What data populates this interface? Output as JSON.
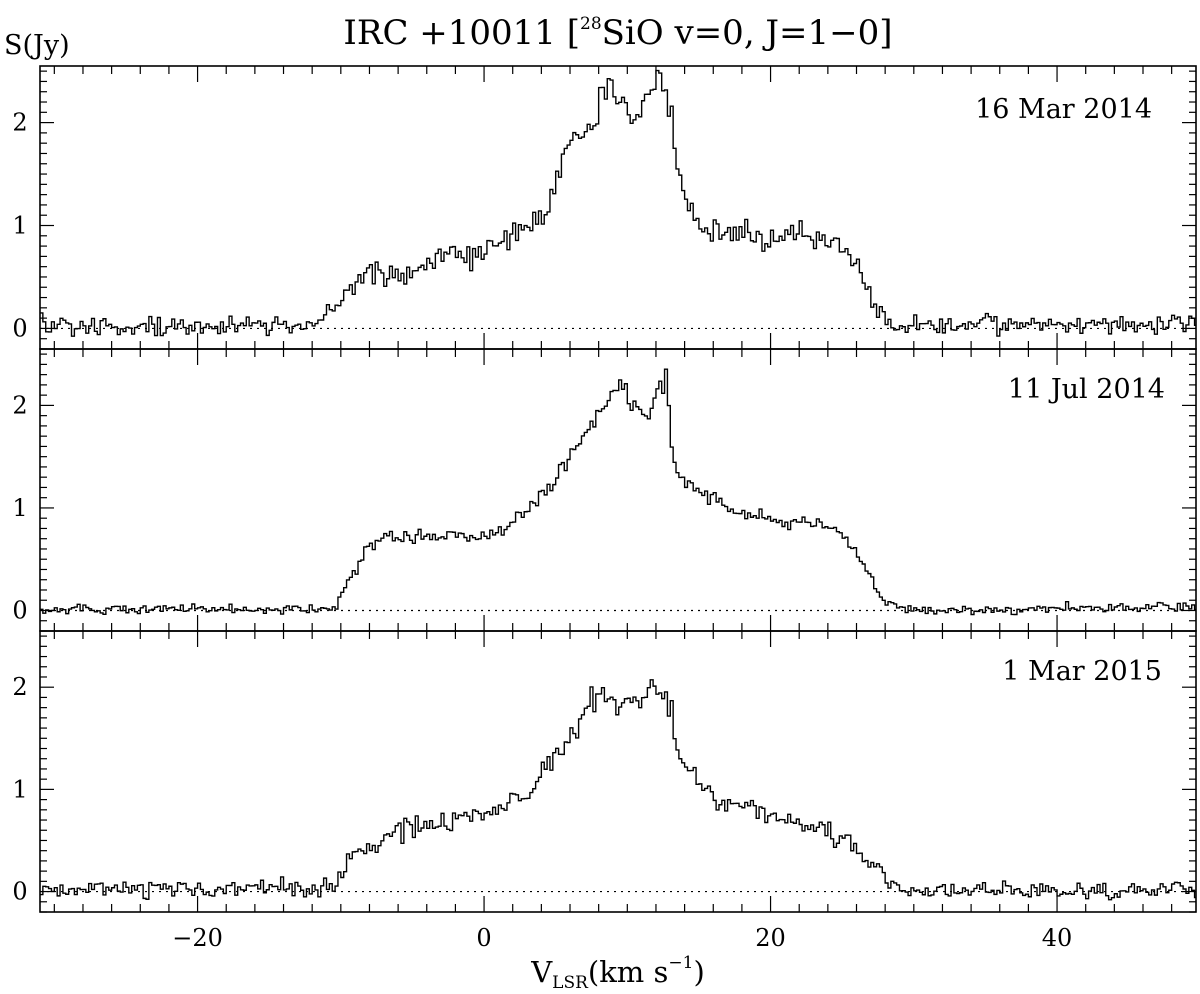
{
  "chart_data": {
    "type": "line",
    "title_main": "IRC +10011 [",
    "title_sup": "28",
    "title_rest": "SiO v=0, J=1−0]",
    "ylabel": "S(Jy)",
    "xlabel_main": "V",
    "xlabel_sub": "LSR",
    "xlabel_rest": "(km s",
    "xlabel_sup": "−1",
    "xlabel_end": ")",
    "xlim": [
      -31,
      49.7
    ],
    "ylim": [
      -0.2,
      2.55
    ],
    "x_ticks": [
      -20,
      0,
      20,
      40
    ],
    "x_tick_labels": [
      "−20",
      "0",
      "20",
      "40"
    ],
    "y_ticks": [
      0,
      1,
      2
    ],
    "y_tick_labels": [
      "0",
      "1",
      "2"
    ],
    "baseline": 0,
    "grid": false,
    "panels": [
      {
        "date": "16 Mar 2014",
        "profile": [
          [
            -31,
            0.03
          ],
          [
            -12,
            0.02
          ],
          [
            -10,
            0.25
          ],
          [
            -8,
            0.6
          ],
          [
            -5,
            0.55
          ],
          [
            -2,
            0.72
          ],
          [
            0,
            0.72
          ],
          [
            2,
            0.9
          ],
          [
            4,
            1.1
          ],
          [
            5.5,
            1.6
          ],
          [
            6,
            1.85
          ],
          [
            7.5,
            1.95
          ],
          [
            8.5,
            2.3
          ],
          [
            9.3,
            2.28
          ],
          [
            10,
            2.05
          ],
          [
            11,
            2.05
          ],
          [
            12,
            2.5
          ],
          [
            13,
            2.15
          ],
          [
            13.7,
            1.5
          ],
          [
            14.5,
            1.05
          ],
          [
            16,
            0.95
          ],
          [
            18,
            0.95
          ],
          [
            20,
            0.88
          ],
          [
            22,
            0.92
          ],
          [
            24,
            0.88
          ],
          [
            25.5,
            0.72
          ],
          [
            26.5,
            0.45
          ],
          [
            27.5,
            0.18
          ],
          [
            28.5,
            0.02
          ],
          [
            49.7,
            0.05
          ]
        ],
        "noise": 0.08
      },
      {
        "date": "11 Jul 2014",
        "profile": [
          [
            -31,
            0.01
          ],
          [
            -10.5,
            0.01
          ],
          [
            -9.5,
            0.3
          ],
          [
            -8,
            0.65
          ],
          [
            -6,
            0.72
          ],
          [
            -3,
            0.72
          ],
          [
            0,
            0.72
          ],
          [
            3,
            0.95
          ],
          [
            5,
            1.3
          ],
          [
            6.5,
            1.6
          ],
          [
            8,
            1.95
          ],
          [
            9.5,
            2.22
          ],
          [
            10.3,
            2.0
          ],
          [
            11.5,
            1.95
          ],
          [
            12.7,
            2.3
          ],
          [
            13.3,
            1.4
          ],
          [
            15,
            1.15
          ],
          [
            17,
            1.0
          ],
          [
            20,
            0.88
          ],
          [
            23,
            0.85
          ],
          [
            25,
            0.75
          ],
          [
            26.5,
            0.45
          ],
          [
            28,
            0.1
          ],
          [
            29,
            0.0
          ],
          [
            49.7,
            0.03
          ]
        ],
        "noise": 0.04
      },
      {
        "date": "1 Mar 2015",
        "profile": [
          [
            -31,
            0.02
          ],
          [
            -10.5,
            0.04
          ],
          [
            -9,
            0.35
          ],
          [
            -6,
            0.6
          ],
          [
            -3,
            0.68
          ],
          [
            0,
            0.78
          ],
          [
            3,
            0.95
          ],
          [
            5,
            1.35
          ],
          [
            6.5,
            1.6
          ],
          [
            7.5,
            1.85
          ],
          [
            9,
            1.9
          ],
          [
            10.3,
            1.75
          ],
          [
            11.5,
            1.98
          ],
          [
            12.7,
            1.95
          ],
          [
            13.5,
            1.45
          ],
          [
            15,
            1.05
          ],
          [
            17,
            0.85
          ],
          [
            19.5,
            0.8
          ],
          [
            22,
            0.65
          ],
          [
            24,
            0.6
          ],
          [
            26,
            0.42
          ],
          [
            27.5,
            0.18
          ],
          [
            29,
            0.05
          ],
          [
            31,
            0.0
          ],
          [
            49.7,
            0.02
          ]
        ],
        "noise": 0.07
      }
    ]
  }
}
